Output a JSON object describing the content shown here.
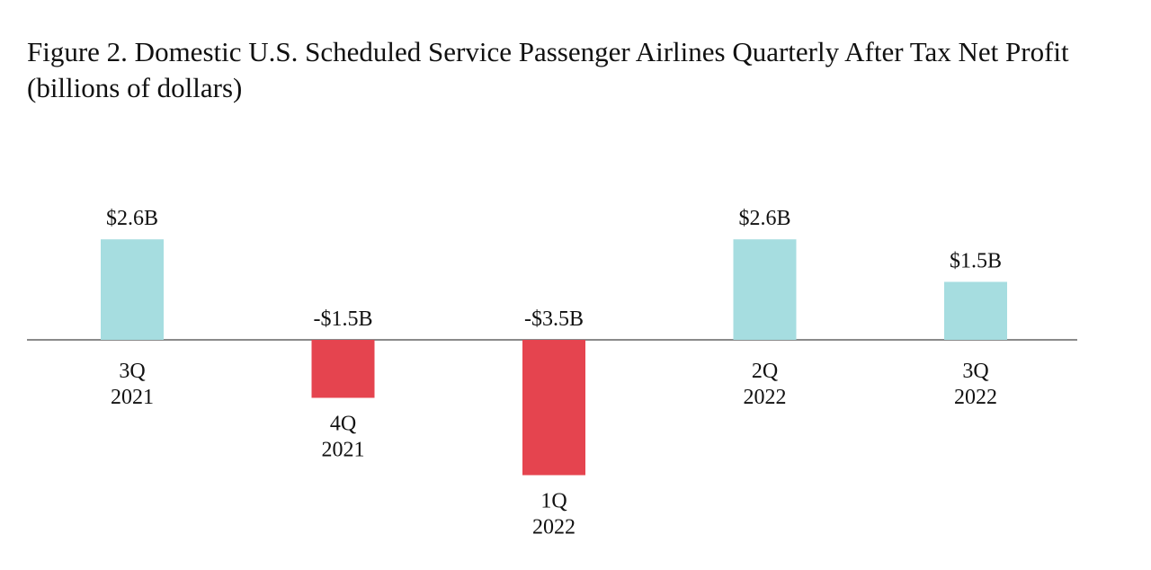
{
  "chart_data": {
    "type": "bar",
    "title": "Figure 2. Domestic U.S. Scheduled Service Passenger Airlines Quarterly After Tax Net Profit",
    "subtitle": "(billions of dollars)",
    "categories": [
      [
        "3Q",
        "2021"
      ],
      [
        "4Q",
        "2021"
      ],
      [
        "1Q",
        "2022"
      ],
      [
        "2Q",
        "2022"
      ],
      [
        "3Q",
        "2022"
      ]
    ],
    "values": [
      2.6,
      -1.5,
      -3.5,
      2.6,
      1.5
    ],
    "data_labels": [
      "$2.6B",
      "-$1.5B",
      "-$3.5B",
      "$2.6B",
      "$1.5B"
    ],
    "unit": "billions of dollars",
    "ylim": [
      -3.5,
      2.6
    ],
    "grid": false,
    "colors": {
      "positive": "#a6dde0",
      "negative": "#e5444f",
      "axis": "#8a8a8a"
    }
  }
}
